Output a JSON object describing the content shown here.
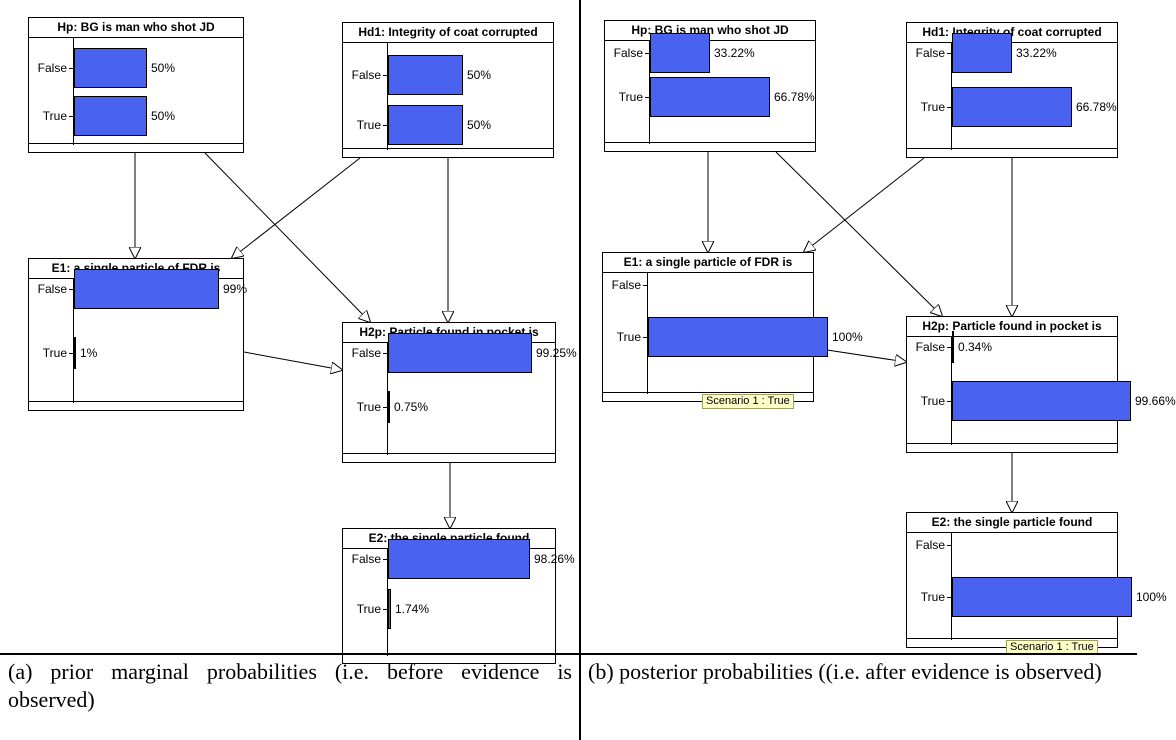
{
  "panels": [
    {
      "id": "prior",
      "nodes": [
        {
          "id": "hp",
          "title": "Hp:  BG is man who shot JD",
          "states": [
            {
              "label": "False",
              "pct": "50%",
              "value": 50
            },
            {
              "label": "True",
              "pct": "50%",
              "value": 50
            }
          ]
        },
        {
          "id": "hd1",
          "title": "Hd1:  Integrity of coat corrupted",
          "states": [
            {
              "label": "False",
              "pct": "50%",
              "value": 50
            },
            {
              "label": "True",
              "pct": "50%",
              "value": 50
            }
          ]
        },
        {
          "id": "e1",
          "title": "E1:  a single particle of FDR is",
          "states": [
            {
              "label": "False",
              "pct": "99%",
              "value": 99
            },
            {
              "label": "True",
              "pct": "1%",
              "value": 1
            }
          ]
        },
        {
          "id": "h2p",
          "title": "H2p: Particle found in pocket is",
          "states": [
            {
              "label": "False",
              "pct": "99.25%",
              "value": 99.25
            },
            {
              "label": "True",
              "pct": "0.75%",
              "value": 0.75
            }
          ]
        },
        {
          "id": "e2",
          "title": "E2:  the single particle found",
          "states": [
            {
              "label": "False",
              "pct": "98.26%",
              "value": 98.26
            },
            {
              "label": "True",
              "pct": "1.74%",
              "value": 1.74
            }
          ]
        }
      ]
    },
    {
      "id": "posterior",
      "nodes": [
        {
          "id": "hp",
          "title": "Hp:  BG is man who shot JD",
          "states": [
            {
              "label": "False",
              "pct": "33.22%",
              "value": 33.22
            },
            {
              "label": "True",
              "pct": "66.78%",
              "value": 66.78
            }
          ]
        },
        {
          "id": "hd1",
          "title": "Hd1:  Integrity of coat corrupted",
          "states": [
            {
              "label": "False",
              "pct": "33.22%",
              "value": 33.22
            },
            {
              "label": "True",
              "pct": "66.78%",
              "value": 66.78
            }
          ]
        },
        {
          "id": "e1",
          "title": "E1:  a single particle of FDR is",
          "states": [
            {
              "label": "False",
              "pct": "",
              "value": 0
            },
            {
              "label": "True",
              "pct": "100%",
              "value": 100
            }
          ],
          "evidence": "Scenario 1 : True"
        },
        {
          "id": "h2p",
          "title": "H2p: Particle found in pocket is",
          "states": [
            {
              "label": "False",
              "pct": "0.34%",
              "value": 0.34
            },
            {
              "label": "True",
              "pct": "99.66%",
              "value": 99.66
            }
          ]
        },
        {
          "id": "e2",
          "title": "E2:  the single particle found",
          "states": [
            {
              "label": "False",
              "pct": "",
              "value": 0
            },
            {
              "label": "True",
              "pct": "100%",
              "value": 100
            }
          ],
          "evidence": "Scenario 1 : True"
        }
      ]
    }
  ],
  "captions": {
    "left": "(a) prior marginal probabilities (i.e. before evidence is observed)",
    "right": "(b) posterior probabilities ((i.e. after evidence is observed)"
  }
}
